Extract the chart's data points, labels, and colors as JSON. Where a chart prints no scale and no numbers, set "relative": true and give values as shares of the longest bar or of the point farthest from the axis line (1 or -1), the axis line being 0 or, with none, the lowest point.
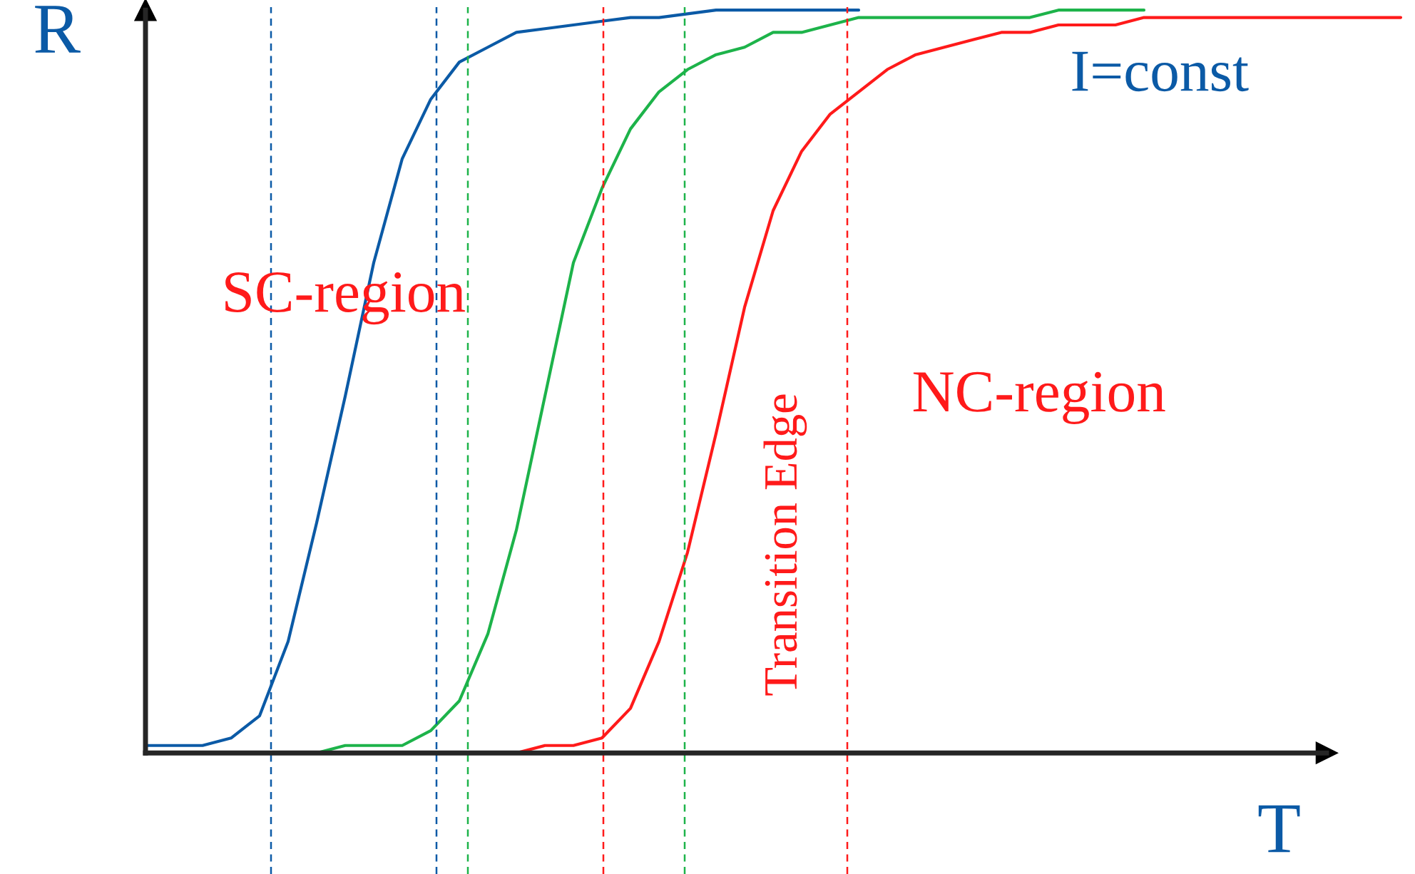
{
  "chart_data": {
    "type": "line",
    "relative": true,
    "xlabel": "T",
    "ylabel": "R",
    "legend": false,
    "marker": "none",
    "line_style": "solid",
    "categories": [
      null,
      null,
      null,
      null,
      null,
      null,
      null,
      null,
      null,
      null,
      null,
      null,
      null,
      null,
      null,
      null,
      null,
      null,
      null,
      null,
      null,
      null,
      null,
      null,
      null,
      null,
      null,
      null,
      null,
      null,
      null,
      null,
      null,
      null,
      null,
      null,
      null,
      null,
      null,
      null,
      null,
      null,
      null,
      null,
      null
    ],
    "series": [
      {
        "color": "#0b5aa6",
        "values": [
          0.01,
          0.01,
          0.01,
          0.02,
          0.05,
          0.15,
          0.31,
          0.48,
          0.66,
          0.8,
          0.88,
          0.93,
          0.95,
          0.97,
          0.975,
          0.98,
          0.985,
          0.99,
          0.99,
          0.995,
          1.0,
          1.0,
          1.0,
          1.0,
          1.0,
          1.0,
          null,
          null,
          null,
          null,
          null,
          null,
          null,
          null,
          null,
          null,
          null,
          null,
          null,
          null,
          null,
          null,
          null,
          null,
          null
        ]
      },
      {
        "color": "#1db34a",
        "values": [
          null,
          null,
          null,
          null,
          null,
          0,
          0,
          0.01,
          0.01,
          0.01,
          0.03,
          0.07,
          0.16,
          0.3,
          0.48,
          0.66,
          0.76,
          0.84,
          0.89,
          0.92,
          0.94,
          0.95,
          0.97,
          0.97,
          0.98,
          0.99,
          0.99,
          0.99,
          0.99,
          0.99,
          0.99,
          0.99,
          1.0,
          1.0,
          1.0,
          1.0,
          null,
          null,
          null,
          null,
          null,
          null,
          null,
          null,
          null
        ]
      },
      {
        "color": "#ff1a1a",
        "values": [
          null,
          null,
          null,
          null,
          null,
          null,
          null,
          null,
          null,
          null,
          null,
          null,
          0,
          0,
          0.01,
          0.01,
          0.02,
          0.06,
          0.15,
          0.27,
          0.43,
          0.6,
          0.73,
          0.81,
          0.86,
          0.89,
          0.92,
          0.94,
          0.95,
          0.96,
          0.97,
          0.97,
          0.98,
          0.98,
          0.98,
          0.99,
          0.99,
          0.99,
          0.99,
          0.99,
          0.99,
          0.99,
          0.99,
          0.99,
          0.99
        ]
      }
    ],
    "annotations": [
      "SC-region",
      "NC-region",
      "I=const",
      "Transition Edge"
    ]
  }
}
